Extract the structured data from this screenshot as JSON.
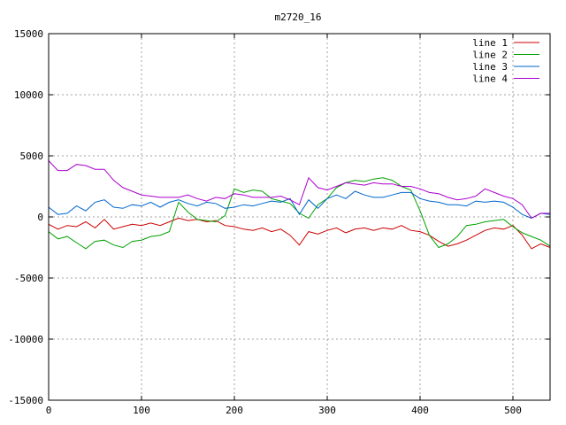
{
  "chart_data": {
    "type": "line",
    "title": "m2720_16",
    "xlabel": "",
    "ylabel": "",
    "xlim": [
      0,
      540
    ],
    "ylim": [
      -15000,
      15000
    ],
    "x_ticks": [
      0,
      100,
      200,
      300,
      400,
      500
    ],
    "y_ticks": [
      -15000,
      -10000,
      -5000,
      0,
      5000,
      10000,
      15000
    ],
    "grid": true,
    "legend_position": "top-right",
    "x": [
      0,
      10,
      20,
      30,
      40,
      50,
      60,
      70,
      80,
      90,
      100,
      110,
      120,
      130,
      140,
      150,
      160,
      170,
      180,
      190,
      200,
      210,
      220,
      230,
      240,
      250,
      260,
      270,
      280,
      290,
      300,
      310,
      320,
      330,
      340,
      350,
      360,
      370,
      380,
      390,
      400,
      410,
      420,
      430,
      440,
      450,
      460,
      470,
      480,
      490,
      500,
      510,
      520,
      530,
      540
    ],
    "series": [
      {
        "name": "line 1",
        "color": "#cc0000",
        "values": [
          -600,
          -1000,
          -700,
          -800,
          -400,
          -900,
          -200,
          -1000,
          -800,
          -600,
          -700,
          -500,
          -700,
          -400,
          -100,
          -300,
          -200,
          -400,
          -300,
          -700,
          -800,
          -1000,
          -1100,
          -900,
          -1200,
          -1000,
          -1500,
          -2300,
          -1200,
          -1400,
          -1100,
          -900,
          -1300,
          -1000,
          -900,
          -1100,
          -900,
          -1000,
          -700,
          -1100,
          -1200,
          -1500,
          -2000,
          -2400,
          -2200,
          -1900,
          -1500,
          -1100,
          -900,
          -1000,
          -700,
          -1500,
          -2600,
          -2200,
          -2500
        ]
      },
      {
        "name": "line 2",
        "color": "#00a000",
        "values": [
          -1200,
          -1800,
          -1600,
          -2100,
          -2600,
          -2000,
          -1900,
          -2300,
          -2500,
          -2000,
          -1900,
          -1600,
          -1500,
          -1200,
          1200,
          400,
          -200,
          -300,
          -400,
          100,
          2300,
          2000,
          2200,
          2100,
          1500,
          1300,
          1100,
          300,
          -100,
          1000,
          1500,
          2400,
          2800,
          3000,
          2900,
          3100,
          3200,
          3000,
          2500,
          2200,
          500,
          -1500,
          -2500,
          -2200,
          -1600,
          -700,
          -600,
          -400,
          -300,
          -200,
          -800,
          -1300,
          -1600,
          -1900,
          -2400
        ]
      },
      {
        "name": "line 3",
        "color": "#0066cc",
        "values": [
          800,
          200,
          300,
          900,
          500,
          1200,
          1400,
          800,
          700,
          1000,
          900,
          1200,
          800,
          1200,
          1400,
          1100,
          900,
          1200,
          1100,
          700,
          800,
          1000,
          900,
          1100,
          1300,
          1200,
          1500,
          200,
          1400,
          700,
          1500,
          1800,
          1500,
          2100,
          1800,
          1600,
          1600,
          1800,
          2000,
          2000,
          1500,
          1300,
          1200,
          1000,
          1000,
          900,
          1300,
          1200,
          1300,
          1200,
          800,
          200,
          -100,
          300,
          200
        ]
      },
      {
        "name": "line 4",
        "color": "#aa00cc",
        "values": [
          4600,
          3800,
          3800,
          4300,
          4200,
          3900,
          3900,
          3000,
          2400,
          2100,
          1800,
          1700,
          1600,
          1600,
          1600,
          1800,
          1500,
          1300,
          1600,
          1500,
          1900,
          1800,
          1600,
          1600,
          1600,
          1700,
          1400,
          1000,
          3200,
          2400,
          2200,
          2500,
          2800,
          2700,
          2600,
          2800,
          2700,
          2700,
          2500,
          2500,
          2300,
          2000,
          1900,
          1600,
          1400,
          1500,
          1700,
          2300,
          2000,
          1700,
          1500,
          1000,
          -100,
          300,
          300
        ]
      }
    ]
  }
}
